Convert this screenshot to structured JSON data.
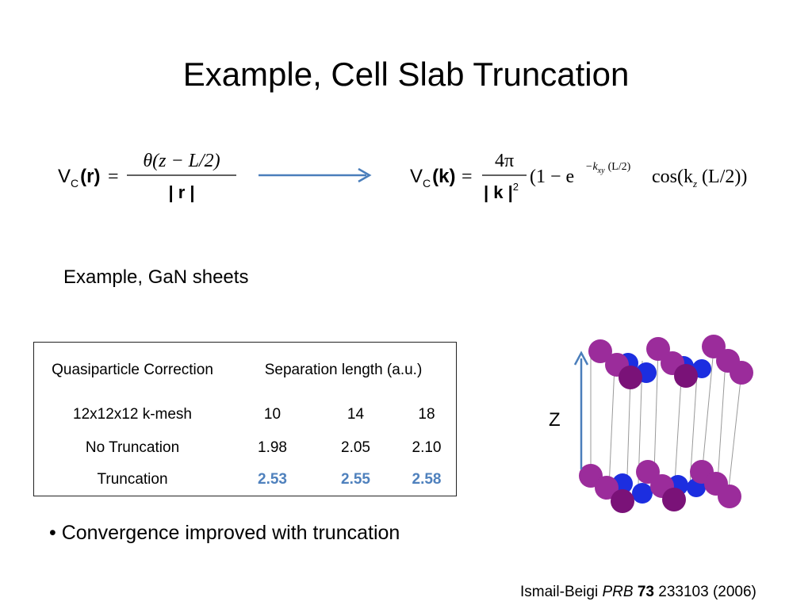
{
  "title": "Example, Cell Slab Truncation",
  "equations": {
    "left": {
      "lhs": "V",
      "lhs_sub": "C",
      "arg": "(r)",
      "equals": "=",
      "numerator": "θ(z − L/2)",
      "denominator": "| r |"
    },
    "right": {
      "lhs": "V",
      "lhs_sub": "C",
      "arg": "(k)",
      "equals": "=",
      "numerator": "4π",
      "denominator": "| k |",
      "denominator_sup": "2",
      "factor": "(1 − e",
      "exponent": "−k",
      "exponent_sub": "xy",
      "exponent_tail": "(L/2)",
      "cos": "cos(k",
      "cos_sub": "z",
      "cos_tail": "(L/2))"
    }
  },
  "subtitle": "Example, GaN sheets",
  "table": {
    "header": [
      "Quasiparticle Correction",
      "Separation length (a.u.)"
    ],
    "rows": [
      [
        "12x12x12 k-mesh",
        "10",
        "14",
        "18"
      ],
      [
        "No Truncation",
        "1.98",
        "2.05",
        "2.10"
      ],
      [
        "Truncation",
        "2.53",
        "2.55",
        "2.58"
      ]
    ]
  },
  "bullet": "Convergence improved with truncation",
  "axis_label": "Z",
  "citation": {
    "authors": "Ismail-Beigi",
    "journal": "PRB",
    "volume": "73",
    "rest": "233103 (2006)"
  }
}
